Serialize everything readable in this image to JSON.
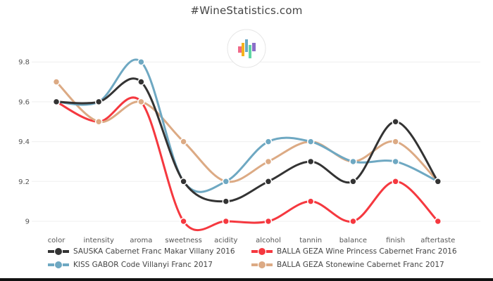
{
  "header": {
    "title": "#WineStatistics.com"
  },
  "logo": {
    "icon": "bar-chart-logo-icon",
    "bar_colors": [
      "#f06a8a",
      "#f5b21c",
      "#6aa8c4",
      "#5fd6a4",
      "#8a6fc8"
    ]
  },
  "chart_data": {
    "type": "line",
    "title": "#WineStatistics.com",
    "xlabel": "",
    "ylabel": "",
    "categories": [
      "color",
      "intensity",
      "aroma",
      "sweetness",
      "acidity",
      "alcohol",
      "tannin",
      "balance",
      "finish",
      "aftertaste"
    ],
    "yticks": [
      "9",
      "9.2",
      "9.4",
      "9.6",
      "9.8"
    ],
    "ylim": [
      9,
      9.8
    ],
    "grid": true,
    "legend_position": "bottom",
    "series": [
      {
        "name": "SAUSKA Cabernet Franc Makar Villany 2016",
        "color": "#333333",
        "values": [
          9.6,
          9.6,
          9.7,
          9.2,
          9.1,
          9.2,
          9.3,
          9.2,
          9.5,
          9.2
        ]
      },
      {
        "name": "BALLA GEZA Wine Princess Cabernet Franc 2016",
        "color": "#f5383f",
        "values": [
          9.6,
          9.5,
          9.6,
          9.0,
          9.0,
          9.0,
          9.1,
          9.0,
          9.2,
          9.0
        ]
      },
      {
        "name": "KISS GABOR Code Villanyi Franc 2017",
        "color": "#6ea8c2",
        "values": [
          9.6,
          9.6,
          9.8,
          9.2,
          9.2,
          9.4,
          9.4,
          9.3,
          9.3,
          9.2
        ]
      },
      {
        "name": "BALLA GEZA Stonewine Cabernet Franc 2017",
        "color": "#dcaa84",
        "values": [
          9.7,
          9.5,
          9.6,
          9.4,
          9.2,
          9.3,
          9.4,
          9.3,
          9.4,
          9.2
        ]
      }
    ]
  }
}
